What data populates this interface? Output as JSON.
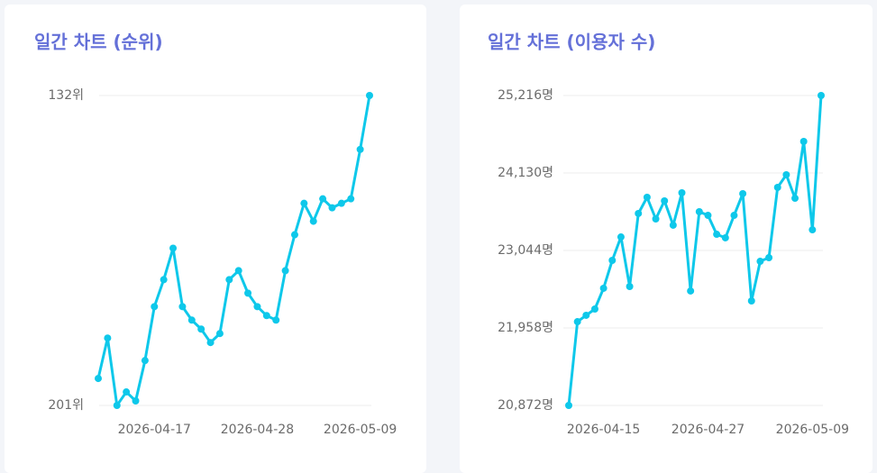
{
  "chart_data": [
    {
      "type": "line",
      "title": "일간 차트 (순위)",
      "categories": [
        "2026-04-11",
        "2026-04-12",
        "2026-04-13",
        "2026-04-14",
        "2026-04-15",
        "2026-04-16",
        "2026-04-17",
        "2026-04-18",
        "2026-04-19",
        "2026-04-20",
        "2026-04-21",
        "2026-04-22",
        "2026-04-23",
        "2026-04-24",
        "2026-04-25",
        "2026-04-26",
        "2026-04-27",
        "2026-04-28",
        "2026-04-29",
        "2026-04-30",
        "2026-05-01",
        "2026-05-02",
        "2026-05-03",
        "2026-05-04",
        "2026-05-05",
        "2026-05-06",
        "2026-05-07",
        "2026-05-08",
        "2026-05-09",
        "2026-05-10"
      ],
      "values": [
        195,
        186,
        201,
        198,
        200,
        191,
        179,
        173,
        166,
        179,
        182,
        184,
        187,
        185,
        173,
        171,
        176,
        179,
        181,
        182,
        171,
        163,
        156,
        160,
        155,
        157,
        156,
        155,
        144,
        132
      ],
      "color": "#0ec8ea",
      "ylim": [
        201,
        132
      ],
      "yticks": [
        {
          "value": 132,
          "label": "132위"
        },
        {
          "value": 201,
          "label": "201위"
        }
      ],
      "xticks": [
        "2026-04-17",
        "2026-04-28",
        "2026-05-09"
      ],
      "grid": true
    },
    {
      "type": "line",
      "title": "일간 차트 (이용자 수)",
      "categories": [
        "2026-04-11",
        "2026-04-12",
        "2026-04-13",
        "2026-04-14",
        "2026-04-15",
        "2026-04-16",
        "2026-04-17",
        "2026-04-18",
        "2026-04-19",
        "2026-04-20",
        "2026-04-21",
        "2026-04-22",
        "2026-04-23",
        "2026-04-24",
        "2026-04-25",
        "2026-04-26",
        "2026-04-27",
        "2026-04-28",
        "2026-04-29",
        "2026-04-30",
        "2026-05-01",
        "2026-05-02",
        "2026-05-03",
        "2026-05-04",
        "2026-05-05",
        "2026-05-06",
        "2026-05-07",
        "2026-05-08",
        "2026-05-09",
        "2026-05-10"
      ],
      "values": [
        20872,
        22046,
        22135,
        22223,
        22514,
        22905,
        23233,
        22539,
        23562,
        23789,
        23486,
        23739,
        23398,
        23852,
        22476,
        23587,
        23536,
        23271,
        23221,
        23536,
        23840,
        22337,
        22892,
        22943,
        23928,
        24105,
        23776,
        24572,
        23334,
        25216
      ],
      "color": "#0ec8ea",
      "ylim": [
        20872,
        25216
      ],
      "yticks": [
        {
          "value": 20872,
          "label": "20,872명"
        },
        {
          "value": 21958,
          "label": "21,958명"
        },
        {
          "value": 23044,
          "label": "23,044명"
        },
        {
          "value": 24130,
          "label": "24,130명"
        },
        {
          "value": 25216,
          "label": "25,216명"
        }
      ],
      "xticks": [
        "2026-04-15",
        "2026-04-27",
        "2026-05-09"
      ],
      "grid": true
    }
  ]
}
